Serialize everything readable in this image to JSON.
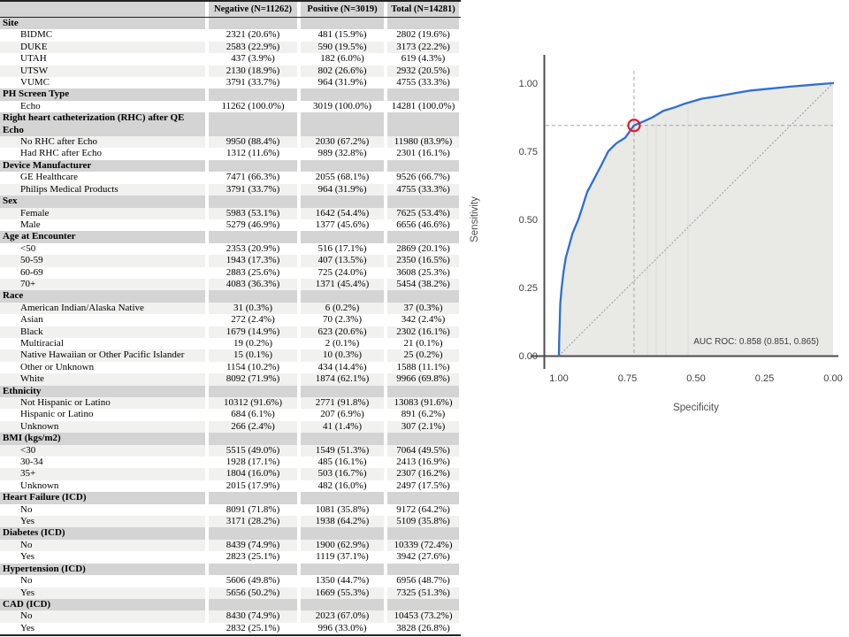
{
  "table": {
    "columns": [
      "",
      "Negative (N=11262)",
      "Positive (N=3019)",
      "Total (N=14281)"
    ],
    "sections": [
      {
        "label": "Site",
        "lines": 1,
        "rows": [
          [
            "BIDMC",
            "2321 (20.6%)",
            "481 (15.9%)",
            "2802 (19.6%)"
          ],
          [
            "DUKE",
            "2583 (22.9%)",
            "590 (19.5%)",
            "3173 (22.2%)"
          ],
          [
            "UTAH",
            "437 (3.9%)",
            "182 (6.0%)",
            "619 (4.3%)"
          ],
          [
            "UTSW",
            "2130 (18.9%)",
            "802 (26.6%)",
            "2932 (20.5%)"
          ],
          [
            "VUMC",
            "3791 (33.7%)",
            "964 (31.9%)",
            "4755 (33.3%)"
          ]
        ]
      },
      {
        "label": "PH Screen Type",
        "lines": 1,
        "rows": [
          [
            "Echo",
            "11262 (100.0%)",
            "3019 (100.0%)",
            "14281 (100.0%)"
          ]
        ]
      },
      {
        "label": "Right heart catheterization (RHC) after QE Echo",
        "lines": 2,
        "rows": [
          [
            "No RHC after Echo",
            "9950 (88.4%)",
            "2030 (67.2%)",
            "11980 (83.9%)"
          ],
          [
            "Had RHC after Echo",
            "1312 (11.6%)",
            "989 (32.8%)",
            "2301 (16.1%)"
          ]
        ]
      },
      {
        "label": "Device Manufacturer",
        "lines": 1,
        "rows": [
          [
            "GE Healthcare",
            "7471 (66.3%)",
            "2055 (68.1%)",
            "9526 (66.7%)"
          ],
          [
            "Philips Medical Products",
            "3791 (33.7%)",
            "964 (31.9%)",
            "4755 (33.3%)"
          ]
        ]
      },
      {
        "label": "Sex",
        "lines": 1,
        "rows": [
          [
            "Female",
            "5983 (53.1%)",
            "1642 (54.4%)",
            "7625 (53.4%)"
          ],
          [
            "Male",
            "5279 (46.9%)",
            "1377 (45.6%)",
            "6656 (46.6%)"
          ]
        ]
      },
      {
        "label": "Age at Encounter",
        "lines": 1,
        "rows": [
          [
            "<50",
            "2353 (20.9%)",
            "516 (17.1%)",
            "2869 (20.1%)"
          ],
          [
            "50-59",
            "1943 (17.3%)",
            "407 (13.5%)",
            "2350 (16.5%)"
          ],
          [
            "60-69",
            "2883 (25.6%)",
            "725 (24.0%)",
            "3608 (25.3%)"
          ],
          [
            "70+",
            "4083 (36.3%)",
            "1371 (45.4%)",
            "5454 (38.2%)"
          ]
        ]
      },
      {
        "label": "Race",
        "lines": 1,
        "rows": [
          [
            "American Indian/Alaska Native",
            "31 (0.3%)",
            "6 (0.2%)",
            "37 (0.3%)"
          ],
          [
            "Asian",
            "272 (2.4%)",
            "70 (2.3%)",
            "342 (2.4%)"
          ],
          [
            "Black",
            "1679 (14.9%)",
            "623 (20.6%)",
            "2302 (16.1%)"
          ],
          [
            "Multiracial",
            "19 (0.2%)",
            "2 (0.1%)",
            "21 (0.1%)"
          ],
          [
            "Native Hawaiian or Other Pacific Islander",
            "15 (0.1%)",
            "10 (0.3%)",
            "25 (0.2%)"
          ],
          [
            "Other or Unknown",
            "1154 (10.2%)",
            "434 (14.4%)",
            "1588 (11.1%)"
          ],
          [
            "White",
            "8092 (71.9%)",
            "1874 (62.1%)",
            "9966 (69.8%)"
          ]
        ]
      },
      {
        "label": "Ethnicity",
        "lines": 1,
        "rows": [
          [
            "Not Hispanic or Latino",
            "10312 (91.6%)",
            "2771 (91.8%)",
            "13083 (91.6%)"
          ],
          [
            "Hispanic or Latino",
            "684 (6.1%)",
            "207 (6.9%)",
            "891 (6.2%)"
          ],
          [
            "Unknown",
            "266 (2.4%)",
            "41 (1.4%)",
            "307 (2.1%)"
          ]
        ]
      },
      {
        "label": "BMI (kgs/m2)",
        "lines": 1,
        "rows": [
          [
            "<30",
            "5515 (49.0%)",
            "1549 (51.3%)",
            "7064 (49.5%)"
          ],
          [
            "30-34",
            "1928 (17.1%)",
            "485 (16.1%)",
            "2413 (16.9%)"
          ],
          [
            "35+",
            "1804 (16.0%)",
            "503 (16.7%)",
            "2307 (16.2%)"
          ],
          [
            "Unknown",
            "2015 (17.9%)",
            "482 (16.0%)",
            "2497 (17.5%)"
          ]
        ]
      },
      {
        "label": "Heart Failure (ICD)",
        "lines": 1,
        "rows": [
          [
            "No",
            "8091 (71.8%)",
            "1081 (35.8%)",
            "9172 (64.2%)"
          ],
          [
            "Yes",
            "3171 (28.2%)",
            "1938 (64.2%)",
            "5109 (35.8%)"
          ]
        ]
      },
      {
        "label": "Diabetes (ICD)",
        "lines": 1,
        "rows": [
          [
            "No",
            "8439 (74.9%)",
            "1900 (62.9%)",
            "10339 (72.4%)"
          ],
          [
            "Yes",
            "2823 (25.1%)",
            "1119 (37.1%)",
            "3942 (27.6%)"
          ]
        ]
      },
      {
        "label": "Hypertension (ICD)",
        "lines": 1,
        "rows": [
          [
            "No",
            "5606 (49.8%)",
            "1350 (44.7%)",
            "6956 (48.7%)"
          ],
          [
            "Yes",
            "5656 (50.2%)",
            "1669 (55.3%)",
            "7325 (51.3%)"
          ]
        ]
      },
      {
        "label": "CAD (ICD)",
        "lines": 1,
        "rows": [
          [
            "No",
            "8430 (74.9%)",
            "2023 (67.0%)",
            "10453 (73.2%)"
          ],
          [
            "Yes",
            "2832 (25.1%)",
            "996 (33.0%)",
            "3828 (26.8%)"
          ]
        ]
      }
    ]
  },
  "chart_data": {
    "type": "line",
    "title": "",
    "xlabel": "Specificity",
    "ylabel": "Sensitivity",
    "x_axis_reversed": true,
    "xlim": [
      1.0,
      0.0
    ],
    "ylim": [
      0.0,
      1.0
    ],
    "grid": false,
    "legend": "none",
    "annotation": "AUC ROC:  0.858 (0.851, 0.865)",
    "auc": 0.858,
    "auc_ci": [
      0.851,
      0.865
    ],
    "x_ticks": [
      {
        "label": "1.00",
        "value": 1.0
      },
      {
        "label": "0.75",
        "value": 0.75
      },
      {
        "label": "0.50",
        "value": 0.5
      },
      {
        "label": "0.25",
        "value": 0.25
      },
      {
        "label": "0.00",
        "value": 0.0
      }
    ],
    "y_ticks": [
      {
        "label": "1.00",
        "value": 1.0
      },
      {
        "label": "0.75",
        "value": 0.75
      },
      {
        "label": "0.50",
        "value": 0.5
      },
      {
        "label": "0.25",
        "value": 0.25
      },
      {
        "label": "0.00",
        "value": 0.0
      }
    ],
    "operating_point": {
      "specificity": 0.726,
      "sensitivity": 0.845
    },
    "diagonal_reference": true,
    "series": [
      {
        "name": "ROC curve",
        "points": [
          [
            1.0,
            0.0
          ],
          [
            0.999,
            0.06
          ],
          [
            0.997,
            0.12
          ],
          [
            0.995,
            0.19
          ],
          [
            0.99,
            0.25
          ],
          [
            0.983,
            0.31
          ],
          [
            0.975,
            0.36
          ],
          [
            0.964,
            0.4
          ],
          [
            0.95,
            0.45
          ],
          [
            0.929,
            0.5
          ],
          [
            0.913,
            0.55
          ],
          [
            0.897,
            0.6
          ],
          [
            0.871,
            0.65
          ],
          [
            0.845,
            0.7
          ],
          [
            0.82,
            0.75
          ],
          [
            0.79,
            0.78
          ],
          [
            0.758,
            0.8
          ],
          [
            0.726,
            0.845
          ],
          [
            0.69,
            0.86
          ],
          [
            0.658,
            0.875
          ],
          [
            0.62,
            0.898
          ],
          [
            0.575,
            0.912
          ],
          [
            0.54,
            0.925
          ],
          [
            0.48,
            0.943
          ],
          [
            0.42,
            0.952
          ],
          [
            0.36,
            0.963
          ],
          [
            0.3,
            0.973
          ],
          [
            0.23,
            0.98
          ],
          [
            0.16,
            0.987
          ],
          [
            0.09,
            0.993
          ],
          [
            0.04,
            0.997
          ],
          [
            0.0,
            1.0
          ]
        ]
      }
    ],
    "fill_gridlines": [
      {
        "specificity": 0.677,
        "sensitivity_top": 0.85
      },
      {
        "specificity": 0.645,
        "sensitivity_top": 0.862
      },
      {
        "specificity": 0.61,
        "sensitivity_top": 0.876
      },
      {
        "specificity": 0.529,
        "sensitivity_top": 0.92
      }
    ],
    "colors": {
      "curve": "#2e6fd0",
      "marker": "#e0192e",
      "fill": "#e9e9e6",
      "crosshair": "#a6a6a6",
      "diagonal": "#999999",
      "axis": "#4d4d4d",
      "tick_text": "#3f3f3f",
      "annotation_text": "#3c3c3c",
      "fill_gridline": "#dbdbd9"
    }
  }
}
